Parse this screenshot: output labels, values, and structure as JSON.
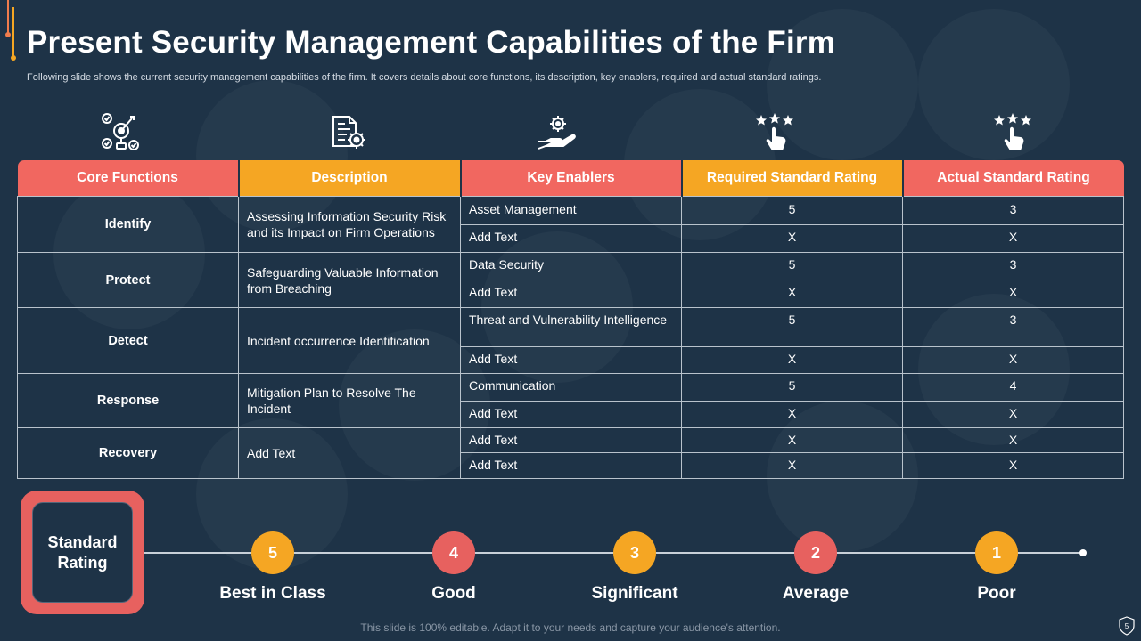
{
  "title": "Present Security Management Capabilities of the Firm",
  "subtitle": "Following slide shows the current security management capabilities of the firm. It covers details about core functions, its description, key enablers, required and actual standard ratings.",
  "icons": [
    "target-settings-icon",
    "document-gear-icon",
    "hand-gear-icon",
    "stars-hand-icon",
    "stars-hand-icon"
  ],
  "table": {
    "headers": [
      "Core Functions",
      "Description",
      "Key Enablers",
      "Required Standard Rating",
      "Actual Standard Rating"
    ],
    "groups": [
      {
        "function": "Identify",
        "description": "Assessing Information Security Risk and its Impact on Firm Operations",
        "rows": [
          {
            "enabler": "Asset Management",
            "required": "5",
            "actual": "3"
          },
          {
            "enabler": "Add Text",
            "required": "X",
            "actual": "X"
          }
        ]
      },
      {
        "function": "Protect",
        "description": "Safeguarding Valuable Information from Breaching",
        "rows": [
          {
            "enabler": "Data Security",
            "required": "5",
            "actual": "3"
          },
          {
            "enabler": "Add Text",
            "required": "X",
            "actual": "X"
          }
        ]
      },
      {
        "function": "Detect",
        "description": "Incident occurrence Identification",
        "rows": [
          {
            "enabler": "Threat and Vulnerability Intelligence",
            "required": "5",
            "actual": "3"
          },
          {
            "enabler": "Add Text",
            "required": "X",
            "actual": "X"
          }
        ]
      },
      {
        "function": "Response",
        "description": "Mitigation Plan to Resolve The Incident",
        "rows": [
          {
            "enabler": "Communication",
            "required": "5",
            "actual": "4"
          },
          {
            "enabler": "Add Text",
            "required": "X",
            "actual": "X"
          }
        ]
      },
      {
        "function": "Recovery",
        "description": "Add Text",
        "rows": [
          {
            "enabler": "Add Text",
            "required": "X",
            "actual": "X"
          },
          {
            "enabler": "Add Text",
            "required": "X",
            "actual": "X"
          }
        ]
      }
    ]
  },
  "rating": {
    "label": "Standard Rating",
    "scale": [
      {
        "value": "5",
        "label": "Best in Class",
        "color": "#f5a623"
      },
      {
        "value": "4",
        "label": "Good",
        "color": "#e7615f"
      },
      {
        "value": "3",
        "label": "Significant",
        "color": "#f5a623"
      },
      {
        "value": "2",
        "label": "Average",
        "color": "#e7615f"
      },
      {
        "value": "1",
        "label": "Poor",
        "color": "#f5a623"
      }
    ]
  },
  "footer": "This slide is 100% editable. Adapt it to your needs and capture your audience's attention.",
  "page_number": "5",
  "colors": {
    "background": "#1e3347",
    "red": "#f16760",
    "orange": "#f5a623"
  }
}
